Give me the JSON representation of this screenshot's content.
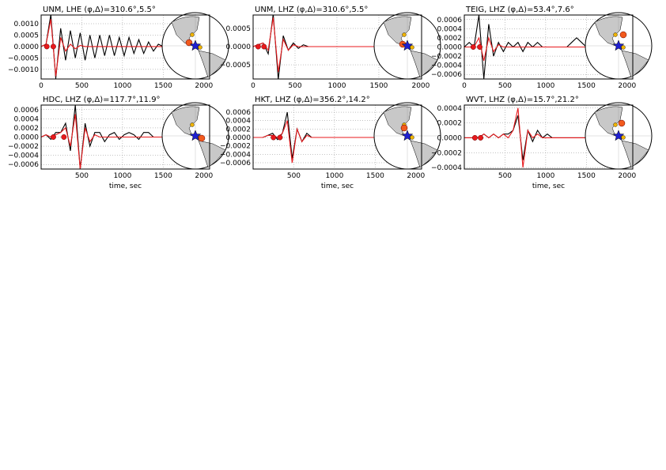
{
  "chart_data": [
    {
      "type": "line",
      "title": "UNM, LHE (φ,Δ)=310.6°,5.5°",
      "xlim": [
        0,
        2070
      ],
      "xticks": [
        0,
        500,
        1000,
        1500,
        2000
      ],
      "ylim": [
        -0.00142,
        0.00138
      ],
      "yticks": [
        {
          "value": -0.001,
          "label": "−0.0010"
        },
        {
          "value": -0.0005,
          "label": "−0.0005"
        },
        {
          "value": 0,
          "label": "0.0000"
        },
        {
          "value": 0.0005,
          "label": "0.0005"
        },
        {
          "value": 0.001,
          "label": "0.0010"
        }
      ],
      "grid": true,
      "x": [
        0,
        60,
        120,
        180,
        240,
        300,
        360,
        420,
        480,
        540,
        600,
        660,
        720,
        780,
        840,
        900,
        960,
        1020,
        1080,
        1140,
        1200,
        1260,
        1320,
        1380,
        1440,
        1500
      ],
      "series": [
        {
          "color": "#000000",
          "values": [
            0,
            0.0001,
            0.0014,
            -0.0014,
            0.0008,
            -0.0006,
            0.0007,
            -0.0005,
            0.0006,
            -0.0006,
            0.0005,
            -0.0005,
            0.0005,
            -0.0004,
            0.0005,
            -0.0004,
            0.0004,
            -0.0004,
            0.0004,
            -0.0003,
            0.0003,
            -0.0003,
            0.0002,
            -0.0002,
            0.0001,
            0
          ]
        },
        {
          "color": "#e8191c",
          "values": [
            0,
            0.0001,
            0.0012,
            -0.0013,
            0.0004,
            -0.0002,
            0.0001,
            -0.0001,
            5e-05,
            0,
            0,
            0,
            0,
            0,
            0,
            0,
            0,
            0,
            0,
            0,
            0,
            0,
            0,
            0,
            0,
            0
          ]
        }
      ],
      "markers": {
        "color": "#e8191c",
        "x": [
          70,
          150
        ],
        "values": [
          0,
          0
        ]
      }
    },
    {
      "type": "line",
      "title": "UNM, LHZ (φ,Δ)=310.6°,5.5°",
      "xlim": [
        0,
        2010
      ],
      "xticks": [
        0,
        500,
        1000,
        1500,
        2000
      ],
      "ylim": [
        -0.00089,
        0.00087
      ],
      "yticks": [
        {
          "value": -0.0005,
          "label": "−0.0005"
        },
        {
          "value": 0,
          "label": "0.0000"
        },
        {
          "value": 0.0005,
          "label": "0.0005"
        }
      ],
      "grid": true,
      "x": [
        0,
        60,
        120,
        180,
        240,
        300,
        360,
        420,
        480,
        540,
        600,
        660,
        720,
        780,
        840,
        900,
        960,
        1020,
        1080,
        1140,
        1200,
        1260,
        1320,
        1380,
        1440,
        1500
      ],
      "series": [
        {
          "color": "#000000",
          "values": [
            0,
            5e-05,
            0.0001,
            -0.0002,
            0.0009,
            -0.0009,
            0.0003,
            -0.0001,
            0.0001,
            -5e-05,
            5e-05,
            0,
            0,
            0,
            0,
            0,
            0,
            0,
            0,
            0,
            0,
            0,
            0,
            0,
            0,
            0
          ]
        },
        {
          "color": "#e8191c",
          "values": [
            0,
            5e-05,
            0.0001,
            -0.0001,
            0.0008,
            -0.0007,
            0.0002,
            -0.0001,
            5e-05,
            0,
            0,
            0,
            0,
            0,
            0,
            0,
            0,
            0,
            0,
            0,
            0,
            0,
            0,
            0,
            0,
            0
          ]
        }
      ],
      "markers": {
        "color": "#e8191c",
        "x": [
          60,
          130
        ],
        "values": [
          0,
          0
        ]
      }
    },
    {
      "type": "line",
      "title": "TEIG, LHZ (φ,Δ)=53.4°,7.6°",
      "xlim": [
        0,
        2070
      ],
      "xticks": [
        0,
        500,
        1000,
        1500,
        2000
      ],
      "ylim": [
        -0.0007,
        0.0007
      ],
      "yticks": [
        {
          "value": -0.0006,
          "label": "−0.0006"
        },
        {
          "value": -0.0004,
          "label": "−0.0004"
        },
        {
          "value": -0.0002,
          "label": "−0.0002"
        },
        {
          "value": 0,
          "label": "0.0000"
        },
        {
          "value": 0.0002,
          "label": "0.0002"
        },
        {
          "value": 0.0004,
          "label": "0.0004"
        },
        {
          "value": 0.0006,
          "label": "0.0006"
        }
      ],
      "grid": true,
      "x": [
        0,
        60,
        120,
        180,
        240,
        300,
        360,
        420,
        480,
        540,
        600,
        660,
        720,
        780,
        840,
        900,
        960,
        1020,
        1080,
        1140,
        1200,
        1260,
        1320,
        1380,
        1440,
        1500
      ],
      "series": [
        {
          "color": "#000000",
          "values": [
            0,
            0.0001,
            0,
            0.0007,
            -0.0007,
            0.0005,
            -0.0002,
            0.0001,
            -0.0001,
            0.0001,
            0,
            0.0001,
            -0.0001,
            0.0001,
            0,
            0.0001,
            0,
            0,
            0,
            0,
            0,
            0,
            0.0001,
            0.0002,
            0.0001,
            0
          ]
        },
        {
          "color": "#e8191c",
          "values": [
            0,
            0,
            0,
            0.0002,
            -0.0003,
            0.0002,
            -0.0001,
            5e-05,
            0,
            0,
            0,
            0,
            0,
            0,
            0,
            0,
            0,
            0,
            0,
            0,
            0,
            0,
            0,
            0,
            0,
            0
          ]
        }
      ],
      "markers": {
        "color": "#e8191c",
        "x": [
          110,
          190
        ],
        "values": [
          0,
          0
        ]
      }
    },
    {
      "type": "line",
      "title": "HDC, LHZ (φ,Δ)=117.7°,11.9°",
      "xlabel": "time, sec",
      "xlim": [
        0,
        2070
      ],
      "xticks": [
        500,
        1000,
        1500,
        2000
      ],
      "ylim": [
        -0.0007,
        0.0007
      ],
      "yticks": [
        {
          "value": -0.0006,
          "label": "−0.0006"
        },
        {
          "value": -0.0004,
          "label": "−0.0004"
        },
        {
          "value": -0.0002,
          "label": "−0.0002"
        },
        {
          "value": 0,
          "label": "0.0000"
        },
        {
          "value": 0.0002,
          "label": "0.0002"
        },
        {
          "value": 0.0004,
          "label": "0.0004"
        },
        {
          "value": 0.0006,
          "label": "0.0006"
        }
      ],
      "grid": true,
      "x": [
        0,
        60,
        120,
        180,
        240,
        300,
        360,
        420,
        480,
        540,
        600,
        660,
        720,
        780,
        840,
        900,
        960,
        1020,
        1080,
        1140,
        1200,
        1260,
        1320,
        1380,
        1440,
        1500
      ],
      "series": [
        {
          "color": "#000000",
          "values": [
            0,
            5e-05,
            -5e-05,
            0.0001,
            0.0001,
            0.0003,
            -0.0003,
            0.0007,
            -0.0007,
            0.0003,
            -0.0002,
            0.0001,
            0.0001,
            -0.0001,
            5e-05,
            0.0001,
            -5e-05,
            5e-05,
            0.0001,
            5e-05,
            -5e-05,
            0.0001,
            0.0001,
            0,
            0,
            0
          ]
        },
        {
          "color": "#e8191c",
          "values": [
            0,
            5e-05,
            0,
            5e-05,
            0.0001,
            0.0002,
            -0.0002,
            0.0005,
            -0.0007,
            0.0002,
            -0.0001,
            5e-05,
            0,
            0,
            0,
            0,
            0,
            0,
            0,
            0,
            0,
            0,
            0,
            0,
            0,
            0
          ]
        }
      ],
      "markers": {
        "color": "#e8191c",
        "x": [
          150,
          280
        ],
        "values": [
          0,
          0
        ]
      }
    },
    {
      "type": "line",
      "title": "HKT, LHZ (φ,Δ)=356.2°,14.2°",
      "xlabel": "time, sec",
      "xlim": [
        0,
        2070
      ],
      "xticks": [
        500,
        1000,
        1500,
        2000
      ],
      "ylim": [
        -0.00075,
        0.00077
      ],
      "yticks": [
        {
          "value": -0.0006,
          "label": "−0.0006"
        },
        {
          "value": -0.0004,
          "label": "−0.0004"
        },
        {
          "value": -0.0002,
          "label": "−0.0002"
        },
        {
          "value": 0,
          "label": "0.0000"
        },
        {
          "value": 0.0002,
          "label": "0.0002"
        },
        {
          "value": 0.0004,
          "label": "0.0004"
        },
        {
          "value": 0.0006,
          "label": "0.0006"
        }
      ],
      "grid": true,
      "x": [
        0,
        60,
        120,
        180,
        240,
        300,
        360,
        420,
        480,
        540,
        600,
        660,
        720,
        780,
        840,
        900,
        960,
        1020,
        1080,
        1140,
        1200,
        1260,
        1320,
        1380,
        1440,
        1500
      ],
      "series": [
        {
          "color": "#000000",
          "values": [
            0,
            0,
            0,
            5e-05,
            0.0001,
            -5e-05,
            0.0001,
            0.0006,
            -0.0005,
            0.0002,
            -0.0001,
            0.0001,
            0,
            0,
            0,
            0,
            0,
            0,
            0,
            0,
            0,
            0,
            0,
            0,
            0,
            0
          ]
        },
        {
          "color": "#e8191c",
          "values": [
            0,
            0,
            0,
            5e-05,
            5e-05,
            0,
            0.0001,
            0.0004,
            -0.0006,
            0.0002,
            -0.0001,
            5e-05,
            0,
            0,
            0,
            0,
            0,
            0,
            0,
            0,
            0,
            0,
            0,
            0,
            0,
            0
          ]
        }
      ],
      "markers": {
        "color": "#e8191c",
        "x": [
          250,
          330
        ],
        "values": [
          0,
          0
        ]
      }
    },
    {
      "type": "line",
      "title": "WVT, LHZ (φ,Δ)=15.7°,21.2°",
      "xlabel": "time, sec",
      "xlim": [
        0,
        2070
      ],
      "xticks": [
        500,
        1000,
        1500,
        2000
      ],
      "ylim": [
        -0.00042,
        0.00044
      ],
      "yticks": [
        {
          "value": -0.0004,
          "label": "−0.0004"
        },
        {
          "value": -0.0002,
          "label": "−0.0002"
        },
        {
          "value": 0,
          "label": "0.0000"
        },
        {
          "value": 0.0002,
          "label": "0.0002"
        },
        {
          "value": 0.0004,
          "label": "0.0004"
        }
      ],
      "grid": true,
      "x": [
        0,
        60,
        120,
        180,
        240,
        300,
        360,
        420,
        480,
        540,
        600,
        660,
        720,
        780,
        840,
        900,
        960,
        1020,
        1080,
        1140,
        1200,
        1260,
        1320,
        1380,
        1440,
        1500
      ],
      "series": [
        {
          "color": "#000000",
          "values": [
            0,
            0,
            0,
            0,
            5e-05,
            0,
            5e-05,
            0,
            5e-05,
            5e-05,
            0.0001,
            0.0003,
            -0.0003,
            0.0001,
            -5e-05,
            0.0001,
            0,
            5e-05,
            0,
            0,
            0,
            0,
            0,
            0,
            0,
            0
          ]
        },
        {
          "color": "#e8191c",
          "values": [
            0,
            0,
            0,
            0,
            5e-05,
            0,
            5e-05,
            0,
            5e-05,
            0,
            0.0001,
            0.0004,
            -0.0004,
            0.0001,
            0,
            5e-05,
            0,
            0,
            0,
            0,
            0,
            0,
            0,
            0,
            0,
            0
          ]
        }
      ],
      "markers": {
        "color": "#e8191c",
        "x": [
          130,
          200
        ],
        "values": [
          0,
          0
        ]
      }
    }
  ]
}
